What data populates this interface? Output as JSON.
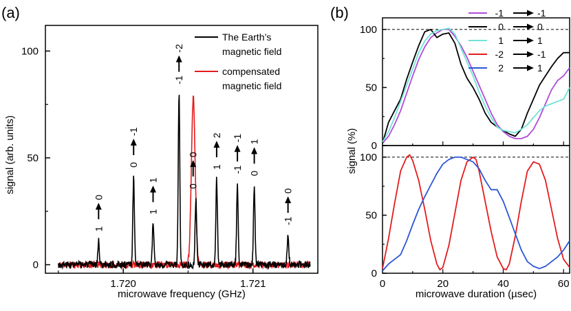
{
  "panels": {
    "a": "(a)",
    "b": "(b)"
  },
  "chart_data": [
    {
      "type": "line",
      "panel": "(a)",
      "xlabel": "microwave frequency (GHz)",
      "ylabel": "signal (arb. units)",
      "xlim": [
        1.7194,
        1.7215
      ],
      "ylim": [
        -4,
        112
      ],
      "xticks": [
        1.72,
        1.721
      ],
      "xtick_labels": [
        "1.720",
        "1.721"
      ],
      "yticks": [
        0,
        50,
        100
      ],
      "ytick_labels": [
        "0",
        "50",
        "100"
      ],
      "legend_position": "top-right",
      "series": [
        {
          "name": "The Earth's magnetic field",
          "color": "#000000",
          "peaks": [
            {
              "x": 1.71981,
              "y": 11,
              "label_from": "0",
              "label_to": "1"
            },
            {
              "x": 1.72008,
              "y": 41,
              "label_from": "-1",
              "label_to": "0"
            },
            {
              "x": 1.72023,
              "y": 19,
              "label_from": "1",
              "label_to": "1"
            },
            {
              "x": 1.72043,
              "y": 80,
              "label_from": "-2",
              "label_to": "-1"
            },
            {
              "x": 1.72056,
              "y": 31,
              "label_from": "0",
              "label_to": "0"
            },
            {
              "x": 1.72072,
              "y": 40,
              "label_from": "2",
              "label_to": "1"
            },
            {
              "x": 1.72088,
              "y": 38,
              "label_from": "-1",
              "label_to": "-1"
            },
            {
              "x": 1.72101,
              "y": 37,
              "label_from": "1",
              "label_to": "0"
            },
            {
              "x": 1.72127,
              "y": 14,
              "label_from": "0",
              "label_to": "-1"
            }
          ]
        },
        {
          "name": "compensated magnetic field",
          "color": "#e41a1c",
          "peaks": [
            {
              "x": 1.72054,
              "y": 78
            }
          ]
        }
      ]
    },
    {
      "type": "line",
      "panel": "(b) upper",
      "ylabel": "signal (%)",
      "xlim": [
        0,
        62
      ],
      "ylim": [
        0,
        110
      ],
      "yticks": [
        0,
        50,
        100
      ],
      "ytick_labels": [
        "0",
        "50",
        "100"
      ],
      "reference_line": 100,
      "legend_position": "top-right",
      "series": [
        {
          "name": "-1 → -1",
          "from": "-1",
          "to": "-1",
          "color": "#b04ad8",
          "x": [
            0,
            2,
            4,
            6,
            8,
            10,
            12,
            14,
            16,
            18,
            20,
            22,
            24,
            26,
            28,
            30,
            32,
            34,
            36,
            38,
            40,
            42,
            44,
            46,
            48,
            50,
            52,
            54,
            56,
            58,
            60,
            62
          ],
          "y": [
            2,
            8,
            18,
            30,
            45,
            60,
            74,
            85,
            93,
            97,
            100,
            100,
            94,
            86,
            76,
            64,
            52,
            40,
            28,
            18,
            12,
            8,
            6,
            6,
            8,
            14,
            24,
            36,
            48,
            56,
            60,
            67
          ]
        },
        {
          "name": "0 → 0",
          "from": "0",
          "to": "0",
          "color": "#000000",
          "x": [
            0,
            2,
            4,
            6,
            8,
            10,
            12,
            14,
            16,
            18,
            20,
            22,
            24,
            26,
            28,
            30,
            32,
            34,
            36,
            38,
            40,
            42,
            44,
            46,
            48,
            50,
            52,
            54,
            56,
            58,
            60,
            62
          ],
          "y": [
            2,
            20,
            30,
            40,
            57,
            72,
            86,
            98,
            100,
            93,
            96,
            97,
            88,
            70,
            58,
            50,
            40,
            28,
            20,
            16,
            13,
            10,
            8,
            14,
            28,
            40,
            52,
            60,
            68,
            75,
            80,
            80
          ]
        },
        {
          "name": "1 → 1",
          "from": "1",
          "to": "1",
          "color": "#6fe3d6",
          "x": [
            0,
            2,
            4,
            6,
            8,
            10,
            12,
            14,
            16,
            18,
            20,
            22,
            24,
            26,
            28,
            30,
            32,
            34,
            36,
            38,
            40,
            42,
            44,
            46,
            48,
            50,
            52,
            54,
            56,
            58,
            60,
            62
          ],
          "y": [
            3,
            12,
            24,
            38,
            52,
            66,
            80,
            90,
            96,
            99,
            100,
            101,
            96,
            84,
            72,
            60,
            46,
            34,
            24,
            16,
            13,
            12,
            11,
            14,
            18,
            24,
            30,
            34,
            36,
            38,
            40,
            50
          ]
        }
      ]
    },
    {
      "type": "line",
      "panel": "(b) lower",
      "ylabel": "signal (%)",
      "xlabel": "microwave duration (µsec)",
      "xlim": [
        0,
        62
      ],
      "ylim": [
        0,
        110
      ],
      "xticks": [
        0,
        20,
        40,
        60
      ],
      "xtick_labels": [
        "0",
        "20",
        "40",
        "60"
      ],
      "yticks": [
        0,
        50,
        100
      ],
      "ytick_labels": [
        "0",
        "50",
        "100"
      ],
      "reference_line": 100,
      "series": [
        {
          "name": "-2 → -1",
          "from": "-2",
          "to": "-1",
          "color": "#e41a1c",
          "x": [
            0,
            2,
            4,
            6,
            8,
            9,
            10,
            12,
            14,
            16,
            18,
            19,
            20,
            22,
            24,
            26,
            28,
            30,
            31,
            32,
            34,
            36,
            38,
            40,
            41,
            42,
            44,
            46,
            48,
            50,
            51,
            52,
            54,
            56,
            58,
            60,
            62
          ],
          "y": [
            4,
            30,
            60,
            88,
            100,
            102,
            97,
            80,
            55,
            28,
            8,
            3,
            5,
            24,
            52,
            80,
            96,
            100,
            98,
            88,
            62,
            36,
            14,
            4,
            3,
            8,
            32,
            62,
            88,
            96,
            95,
            94,
            80,
            55,
            30,
            12,
            5
          ]
        },
        {
          "name": "2 → 1",
          "from": "2",
          "to": "1",
          "color": "#2b55d6",
          "x": [
            0,
            2,
            4,
            6,
            8,
            10,
            12,
            14,
            16,
            18,
            20,
            22,
            24,
            26,
            28,
            30,
            32,
            34,
            36,
            38,
            40,
            42,
            44,
            46,
            48,
            50,
            52,
            54,
            56,
            58,
            60,
            62
          ],
          "y": [
            2,
            8,
            12,
            16,
            28,
            42,
            55,
            66,
            76,
            86,
            94,
            98,
            100,
            100,
            98,
            96,
            90,
            80,
            72,
            72,
            62,
            48,
            34,
            20,
            10,
            6,
            4,
            6,
            10,
            14,
            20,
            28
          ]
        }
      ]
    }
  ]
}
